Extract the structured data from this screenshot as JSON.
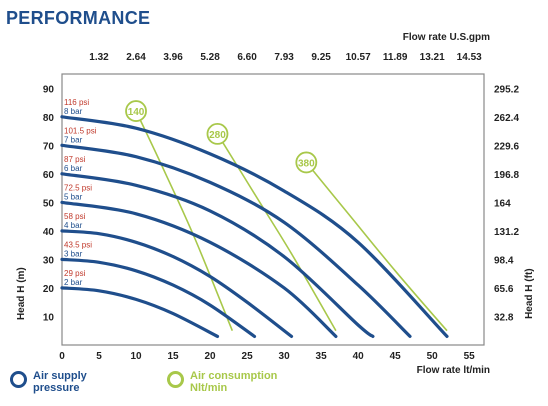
{
  "heading": "PERFORMANCE",
  "legend": {
    "air_supply": {
      "label": "Air supply pressure",
      "color": "#1f4e8c"
    },
    "air_consumption": {
      "label": "Air consumption Nlt/min",
      "color": "#a8c84a"
    }
  },
  "chart_data": {
    "type": "line",
    "title": "",
    "xlabel": "Flow rate  lt/min",
    "x2label": "Flow rate U.S.gpm",
    "ylabel": "Head H (m)",
    "y2label": "Head H (ft)",
    "xlim": [
      0,
      57
    ],
    "ylim": [
      0,
      95
    ],
    "grid": false,
    "x_ticks": [
      0,
      5,
      10,
      15,
      20,
      25,
      30,
      35,
      40,
      45,
      50,
      55
    ],
    "x_tick_labels": [
      "0",
      "5",
      "10",
      "15",
      "20",
      "25",
      "30",
      "35",
      "40",
      "45",
      "50",
      "55"
    ],
    "y_ticks": [
      10,
      20,
      30,
      40,
      50,
      60,
      70,
      80,
      90
    ],
    "y_tick_labels": [
      "10",
      "20",
      "30",
      "40",
      "50",
      "60",
      "70",
      "80",
      "90"
    ],
    "x2_ticks": [
      5,
      10,
      15,
      20,
      25,
      30,
      35,
      40,
      45,
      50,
      55
    ],
    "x2_tick_labels": [
      "1.32",
      "2.64",
      "3.96",
      "5.28",
      "6.60",
      "7.93",
      "9.25",
      "10.57",
      "11.89",
      "13.21",
      "14.53"
    ],
    "y2_ticks": [
      10,
      20,
      30,
      40,
      50,
      60,
      70,
      80,
      90
    ],
    "y2_tick_labels": [
      "32.8",
      "65.6",
      "98.4",
      "131.2",
      "164",
      "196.8",
      "229.6",
      "262.4",
      "295.2"
    ],
    "pressure_series": [
      {
        "psi": "29 psi",
        "bar": "2 bar",
        "x": [
          0,
          5,
          10,
          15,
          21
        ],
        "y": [
          20,
          19,
          16,
          11,
          3
        ]
      },
      {
        "psi": "43.5 psi",
        "bar": "3 bar",
        "x": [
          0,
          5,
          10,
          15,
          20,
          26
        ],
        "y": [
          30,
          29,
          26,
          21,
          14,
          3
        ]
      },
      {
        "psi": "58 psi",
        "bar": "4 bar",
        "x": [
          0,
          5,
          10,
          15,
          20,
          25,
          31
        ],
        "y": [
          40,
          39,
          36,
          31,
          24,
          15,
          3
        ]
      },
      {
        "psi": "72.5 psi",
        "bar": "5 bar",
        "x": [
          0,
          10,
          20,
          30,
          37
        ],
        "y": [
          50,
          46,
          36,
          20,
          3
        ]
      },
      {
        "psi": "87 psi",
        "bar": "6 bar",
        "x": [
          0,
          10,
          20,
          30,
          40,
          42
        ],
        "y": [
          60,
          56,
          47,
          31,
          7,
          3
        ]
      },
      {
        "psi": "101.5 psi",
        "bar": "7 bar",
        "x": [
          0,
          10,
          20,
          30,
          40,
          47
        ],
        "y": [
          70,
          66,
          57,
          43,
          21,
          3
        ]
      },
      {
        "psi": "116 psi",
        "bar": "8 bar",
        "x": [
          0,
          10,
          20,
          30,
          40,
          52
        ],
        "y": [
          80,
          76,
          67,
          54,
          36,
          3
        ]
      }
    ],
    "air_consumption_series": [
      {
        "name": "140",
        "x": [
          10,
          14,
          18,
          23
        ],
        "y": [
          82,
          60,
          37,
          5
        ]
      },
      {
        "name": "280",
        "x": [
          21,
          26,
          31,
          37
        ],
        "y": [
          74,
          53,
          32,
          5
        ]
      },
      {
        "name": "380",
        "x": [
          33,
          39,
          45,
          52
        ],
        "y": [
          64,
          45,
          26,
          5
        ]
      }
    ]
  }
}
